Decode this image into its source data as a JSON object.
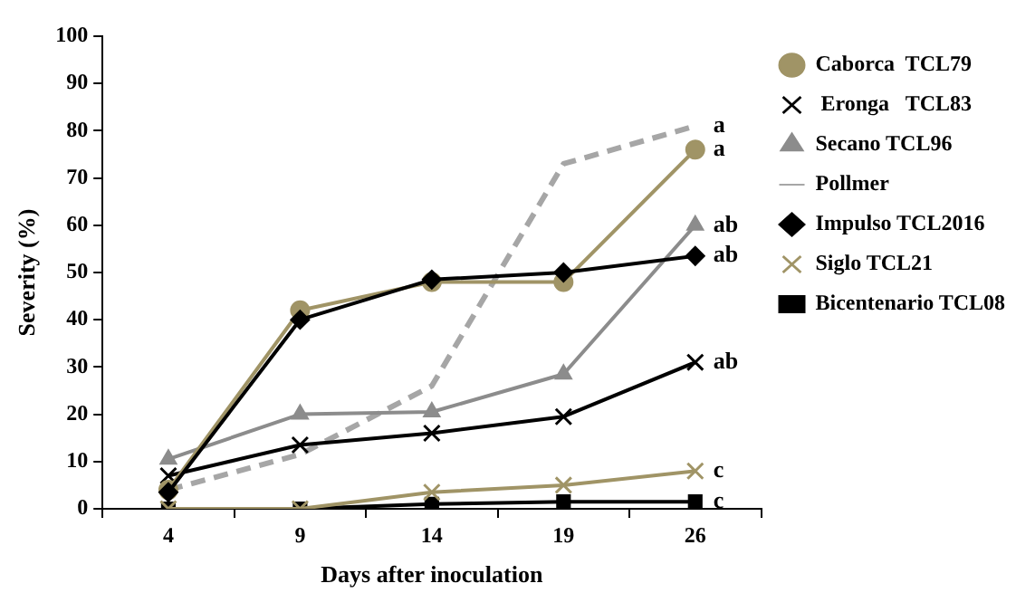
{
  "chart_data": {
    "type": "line",
    "xlabel": "Days after inoculation",
    "ylabel": "Severity (%)",
    "categories": [
      "4",
      "9",
      "14",
      "19",
      "26"
    ],
    "ylim": [
      0,
      100
    ],
    "yticks": [
      0,
      10,
      20,
      30,
      40,
      50,
      60,
      70,
      80,
      90,
      100
    ],
    "legend": "right",
    "series": [
      {
        "name": "Caborca  TCL79",
        "color": "#a09466",
        "marker": "circle",
        "values": [
          4,
          42,
          48,
          48,
          76
        ]
      },
      {
        "name": " Eronga   TCL83",
        "color": "#000000",
        "marker": "cross",
        "values": [
          7,
          13.5,
          16,
          19.5,
          31
        ]
      },
      {
        "name": "Secano TCL96",
        "color": "#8c8c8c",
        "marker": "triangle",
        "values": [
          10.5,
          20,
          20.5,
          28.5,
          60
        ]
      },
      {
        "name": "Pollmer",
        "color": "#a6a6a6",
        "marker": "none",
        "line_style": "dashed",
        "values": [
          4,
          11.5,
          26,
          73,
          81
        ]
      },
      {
        "name": "Impulso TCL2016",
        "color": "#000000",
        "marker": "diamond",
        "values": [
          3.5,
          40,
          48.5,
          50,
          53.5
        ]
      },
      {
        "name": "Siglo TCL21",
        "color": "#a09466",
        "marker": "cross",
        "values": [
          0,
          0,
          3.5,
          5,
          8
        ]
      },
      {
        "name": "Bicentenario TCL08",
        "color": "#000000",
        "marker": "square",
        "values": [
          0,
          0,
          1,
          1.5,
          1.5
        ]
      }
    ],
    "annotations": [
      {
        "text": "a",
        "x": "26",
        "y": 81
      },
      {
        "text": "a",
        "x": "26",
        "y": 76
      },
      {
        "text": "ab",
        "x": "26",
        "y": 60
      },
      {
        "text": "ab",
        "x": "26",
        "y": 53.5
      },
      {
        "text": "ab",
        "x": "26",
        "y": 31
      },
      {
        "text": "c",
        "x": "26",
        "y": 8
      },
      {
        "text": "c",
        "x": "26",
        "y": 1.5
      }
    ]
  }
}
